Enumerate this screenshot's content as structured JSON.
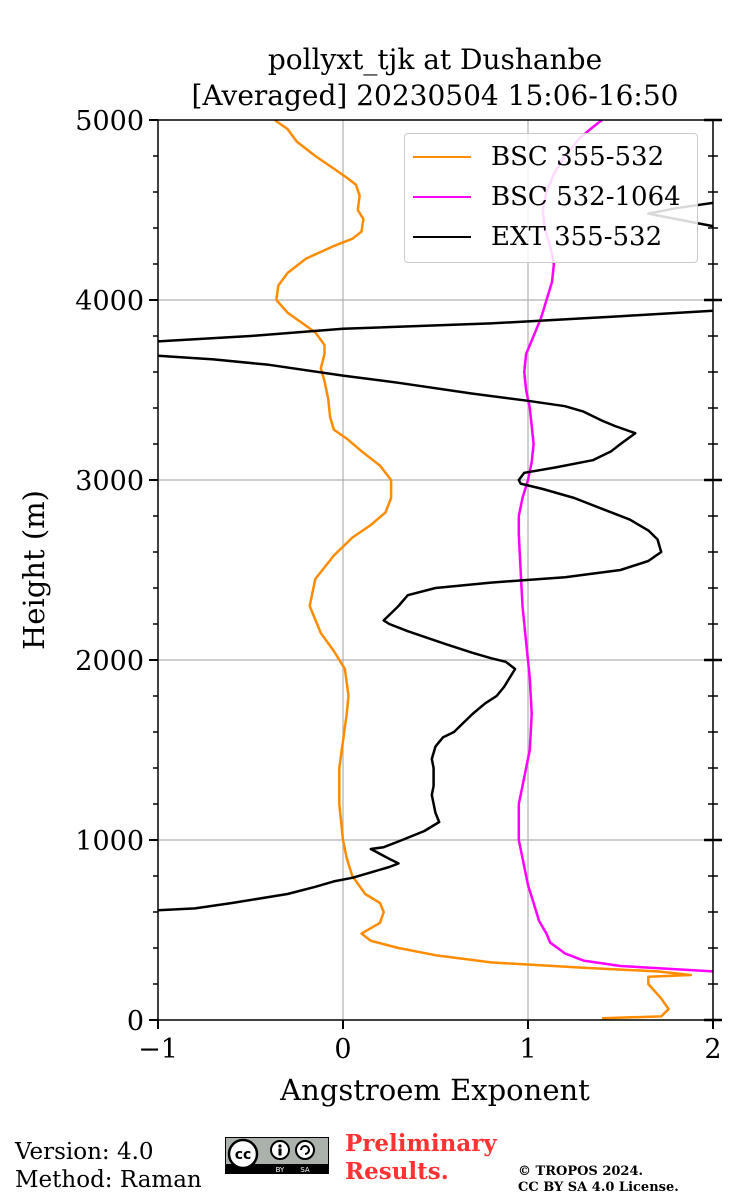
{
  "chart_data": {
    "type": "line",
    "title_line1": "pollyxt_tjk at Dushanbe",
    "title_line2": "[Averaged] 20230504 15:06-16:50",
    "xlabel": "Angstroem Exponent",
    "ylabel": "Height (m)",
    "xlim": [
      -1,
      2
    ],
    "ylim": [
      0,
      5000
    ],
    "xticks": [
      -1,
      0,
      1,
      2
    ],
    "xtick_labels": [
      "−1",
      "0",
      "1",
      "2"
    ],
    "yticks": [
      0,
      1000,
      2000,
      3000,
      4000,
      5000
    ],
    "ytick_labels": [
      "0",
      "1000",
      "2000",
      "3000",
      "4000",
      "5000"
    ],
    "grid": true,
    "legend_position": "top-right",
    "series": [
      {
        "name": "BSC 355-532",
        "color": "#ff8c00",
        "points": [
          [
            1.4,
            10
          ],
          [
            1.72,
            20
          ],
          [
            1.76,
            60
          ],
          [
            1.72,
            120
          ],
          [
            1.65,
            200
          ],
          [
            1.65,
            240
          ],
          [
            1.88,
            250
          ],
          [
            1.7,
            270
          ],
          [
            1.3,
            290
          ],
          [
            0.8,
            320
          ],
          [
            0.5,
            360
          ],
          [
            0.3,
            400
          ],
          [
            0.15,
            440
          ],
          [
            0.1,
            480
          ],
          [
            0.2,
            540
          ],
          [
            0.22,
            600
          ],
          [
            0.2,
            650
          ],
          [
            0.12,
            700
          ],
          [
            0.05,
            800
          ],
          [
            0.02,
            900
          ],
          [
            0,
            1000
          ],
          [
            -0.02,
            1200
          ],
          [
            -0.02,
            1400
          ],
          [
            0.02,
            1700
          ],
          [
            0.03,
            1800
          ],
          [
            0.01,
            1950
          ],
          [
            -0.05,
            2050
          ],
          [
            -0.12,
            2150
          ],
          [
            -0.18,
            2300
          ],
          [
            -0.15,
            2450
          ],
          [
            -0.05,
            2580
          ],
          [
            0.05,
            2680
          ],
          [
            0.15,
            2750
          ],
          [
            0.23,
            2820
          ],
          [
            0.26,
            2900
          ],
          [
            0.26,
            3000
          ],
          [
            0.2,
            3080
          ],
          [
            0.1,
            3160
          ],
          [
            0.02,
            3230
          ],
          [
            -0.05,
            3280
          ],
          [
            -0.07,
            3350
          ],
          [
            -0.08,
            3450
          ],
          [
            -0.1,
            3550
          ],
          [
            -0.12,
            3620
          ],
          [
            -0.1,
            3700
          ],
          [
            -0.1,
            3750
          ],
          [
            -0.15,
            3820
          ],
          [
            -0.3,
            3930
          ],
          [
            -0.36,
            4000
          ],
          [
            -0.35,
            4080
          ],
          [
            -0.3,
            4150
          ],
          [
            -0.2,
            4230
          ],
          [
            -0.05,
            4300
          ],
          [
            0.05,
            4340
          ],
          [
            0.1,
            4380
          ],
          [
            0.11,
            4450
          ],
          [
            0.08,
            4500
          ],
          [
            0.09,
            4580
          ],
          [
            0.07,
            4640
          ],
          [
            0.02,
            4680
          ],
          [
            -0.05,
            4730
          ],
          [
            -0.15,
            4800
          ],
          [
            -0.25,
            4880
          ],
          [
            -0.3,
            4950
          ],
          [
            -0.37,
            5000
          ]
        ]
      },
      {
        "name": "BSC 532-1064",
        "color": "#ff00ff",
        "points": [
          [
            2.0,
            270
          ],
          [
            1.5,
            300
          ],
          [
            1.3,
            330
          ],
          [
            1.2,
            370
          ],
          [
            1.12,
            430
          ],
          [
            1.1,
            480
          ],
          [
            1.06,
            550
          ],
          [
            1.03,
            650
          ],
          [
            1.0,
            750
          ],
          [
            0.97,
            900
          ],
          [
            0.95,
            1000
          ],
          [
            0.95,
            1100
          ],
          [
            0.95,
            1200
          ],
          [
            0.97,
            1300
          ],
          [
            0.99,
            1400
          ],
          [
            1.01,
            1500
          ],
          [
            1.02,
            1700
          ],
          [
            1.01,
            1900
          ],
          [
            0.99,
            2100
          ],
          [
            0.97,
            2300
          ],
          [
            0.96,
            2500
          ],
          [
            0.95,
            2700
          ],
          [
            0.95,
            2800
          ],
          [
            0.97,
            2900
          ],
          [
            1.0,
            3000
          ],
          [
            1.02,
            3100
          ],
          [
            1.03,
            3200
          ],
          [
            1.02,
            3300
          ],
          [
            1.01,
            3400
          ],
          [
            0.99,
            3500
          ],
          [
            0.98,
            3600
          ],
          [
            0.99,
            3700
          ],
          [
            1.03,
            3800
          ],
          [
            1.07,
            3900
          ],
          [
            1.1,
            4000
          ],
          [
            1.13,
            4100
          ],
          [
            1.14,
            4200
          ],
          [
            1.12,
            4300
          ],
          [
            1.09,
            4400
          ],
          [
            1.08,
            4500
          ],
          [
            1.1,
            4600
          ],
          [
            1.14,
            4700
          ],
          [
            1.2,
            4800
          ],
          [
            1.28,
            4900
          ],
          [
            1.35,
            4960
          ],
          [
            1.4,
            5000
          ]
        ]
      },
      {
        "name": "EXT 355-532",
        "color": "#000000",
        "points": [
          [
            -1.0,
            610
          ],
          [
            -0.8,
            620
          ],
          [
            -0.6,
            650
          ],
          [
            -0.3,
            700
          ],
          [
            -0.15,
            740
          ],
          [
            -0.05,
            770
          ],
          [
            0.05,
            790
          ],
          [
            0.15,
            820
          ],
          [
            0.25,
            850
          ],
          [
            0.3,
            870
          ],
          [
            0.26,
            890
          ],
          [
            0.15,
            950
          ],
          [
            0.22,
            960
          ],
          [
            0.32,
            1000
          ],
          [
            0.44,
            1050
          ],
          [
            0.52,
            1100
          ],
          [
            0.5,
            1150
          ],
          [
            0.48,
            1250
          ],
          [
            0.49,
            1300
          ],
          [
            0.49,
            1400
          ],
          [
            0.48,
            1450
          ],
          [
            0.5,
            1520
          ],
          [
            0.54,
            1570
          ],
          [
            0.6,
            1600
          ],
          [
            0.65,
            1650
          ],
          [
            0.7,
            1700
          ],
          [
            0.77,
            1760
          ],
          [
            0.83,
            1800
          ],
          [
            0.87,
            1850
          ],
          [
            0.9,
            1900
          ],
          [
            0.93,
            1950
          ],
          [
            0.88,
            1990
          ],
          [
            0.8,
            2010
          ],
          [
            0.7,
            2040
          ],
          [
            0.55,
            2090
          ],
          [
            0.35,
            2160
          ],
          [
            0.25,
            2200
          ],
          [
            0.22,
            2220
          ],
          [
            0.25,
            2250
          ],
          [
            0.3,
            2300
          ],
          [
            0.35,
            2360
          ],
          [
            0.5,
            2400
          ],
          [
            0.8,
            2430
          ],
          [
            1.2,
            2460
          ],
          [
            1.5,
            2500
          ],
          [
            1.65,
            2550
          ],
          [
            1.72,
            2600
          ],
          [
            1.7,
            2670
          ],
          [
            1.65,
            2720
          ],
          [
            1.55,
            2780
          ],
          [
            1.4,
            2840
          ],
          [
            1.25,
            2900
          ],
          [
            1.08,
            2950
          ],
          [
            0.96,
            2980
          ],
          [
            0.95,
            3000
          ],
          [
            0.98,
            3040
          ],
          [
            1.15,
            3070
          ],
          [
            1.35,
            3110
          ],
          [
            1.45,
            3160
          ],
          [
            1.5,
            3200
          ],
          [
            1.58,
            3260
          ],
          [
            1.47,
            3300
          ],
          [
            1.4,
            3330
          ],
          [
            1.3,
            3380
          ],
          [
            1.2,
            3410
          ],
          [
            1.0,
            3440
          ],
          [
            0.7,
            3480
          ],
          [
            0.3,
            3540
          ],
          [
            0.0,
            3580
          ],
          [
            -0.4,
            3640
          ],
          [
            -0.7,
            3670
          ],
          [
            -1.0,
            3690
          ]
        ]
      },
      {
        "name": "EXT 355-532",
        "color": "#000000",
        "points": [
          [
            -1.0,
            3770
          ],
          [
            -0.5,
            3800
          ],
          [
            0.0,
            3840
          ],
          [
            0.8,
            3870
          ],
          [
            1.5,
            3910
          ],
          [
            2.0,
            3940
          ]
        ]
      },
      {
        "name": "EXT 355-532",
        "color": "#000000",
        "points": [
          [
            2.0,
            4410
          ],
          [
            1.9,
            4430
          ],
          [
            1.65,
            4480
          ],
          [
            1.8,
            4510
          ],
          [
            2.0,
            4540
          ]
        ]
      }
    ],
    "legend": [
      "BSC 355-532",
      "BSC 532-1064",
      "EXT 355-532"
    ],
    "legend_colors": [
      "#ff8c00",
      "#ff00ff",
      "#000000"
    ]
  },
  "footer": {
    "version": "Version: 4.0",
    "method": "Method: Raman",
    "preliminary_line1": "Preliminary",
    "preliminary_line2": "Results.",
    "copyright_line1": "© TROPOS 2024.",
    "copyright_line2": "CC BY SA 4.0 License.",
    "license_badge": "cc by sa"
  }
}
